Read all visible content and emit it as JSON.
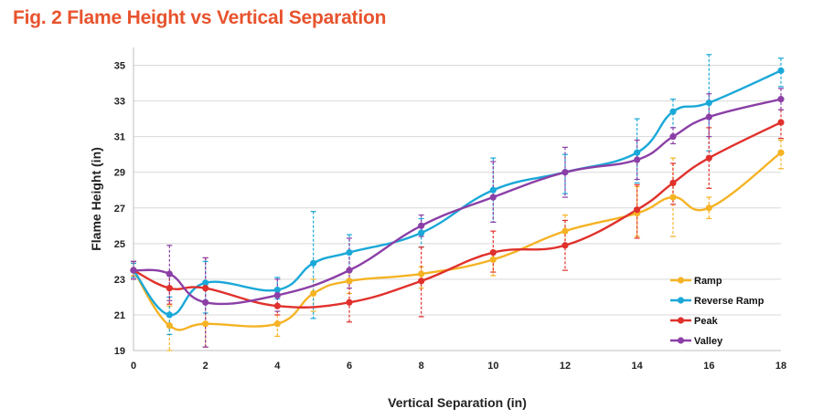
{
  "title": "Fig. 2 Flame Height vs Vertical Separation",
  "chart_data": {
    "type": "line",
    "title": "Fig. 2 Flame Height vs Vertical Separation",
    "xlabel": "Vertical Separation (in)",
    "ylabel": "Flame Height (in)",
    "xlim": [
      0,
      18
    ],
    "ylim": [
      19,
      36
    ],
    "xticks": [
      0,
      2,
      4,
      6,
      8,
      10,
      12,
      14,
      16,
      18
    ],
    "yticks": [
      19,
      21,
      23,
      25,
      27,
      29,
      31,
      33,
      35
    ],
    "x": [
      0,
      1,
      2,
      4,
      5,
      6,
      8,
      10,
      12,
      14,
      15,
      16,
      18
    ],
    "grid": "horizontal",
    "legend_position": "bottom-right",
    "series": [
      {
        "name": "Ramp",
        "color": "#f5b324",
        "values": [
          23.5,
          20.4,
          20.5,
          20.5,
          22.2,
          22.9,
          23.3,
          24.1,
          25.7,
          26.7,
          27.6,
          27.0,
          30.1
        ],
        "err_low": [
          23.2,
          19.0,
          19.2,
          19.8,
          21.2,
          22.2,
          22.5,
          23.2,
          24.8,
          25.4,
          25.4,
          26.4,
          29.2
        ],
        "err_high": [
          23.9,
          21.5,
          21.7,
          21.0,
          23.0,
          23.6,
          23.7,
          24.6,
          26.6,
          28.2,
          29.8,
          27.6,
          30.8
        ]
      },
      {
        "name": "Reverse Ramp",
        "color": "#1aa8d8",
        "values": [
          23.5,
          21.0,
          22.8,
          22.4,
          23.9,
          24.5,
          25.6,
          28.0,
          29.0,
          30.1,
          32.4,
          32.9,
          34.7
        ],
        "err_low": [
          23.1,
          19.9,
          21.1,
          21.9,
          20.8,
          23.5,
          24.8,
          26.2,
          27.8,
          28.4,
          31.5,
          30.2,
          33.8
        ],
        "err_high": [
          23.9,
          22.0,
          24.0,
          23.1,
          26.8,
          25.5,
          26.4,
          29.8,
          30.0,
          32.0,
          33.1,
          35.6,
          35.4
        ]
      },
      {
        "name": "Peak",
        "color": "#e0312c",
        "values": [
          23.5,
          22.5,
          22.5,
          21.5,
          null,
          21.7,
          22.9,
          24.5,
          24.9,
          26.9,
          28.4,
          29.8,
          31.8
        ],
        "err_low": [
          23.0,
          21.6,
          19.2,
          21.0,
          null,
          20.6,
          20.9,
          23.4,
          23.5,
          25.3,
          27.2,
          28.1,
          30.9
        ],
        "err_high": [
          24.0,
          23.3,
          24.2,
          22.0,
          null,
          22.8,
          24.8,
          25.7,
          26.3,
          28.3,
          29.5,
          31.5,
          32.5
        ]
      },
      {
        "name": "Valley",
        "color": "#8b3fa6",
        "values": [
          23.5,
          23.3,
          21.7,
          22.1,
          null,
          23.5,
          26.0,
          27.6,
          29.0,
          29.7,
          31.0,
          32.1,
          33.1
        ],
        "err_low": [
          23.0,
          21.8,
          19.2,
          21.2,
          null,
          22.5,
          25.4,
          26.2,
          27.6,
          28.6,
          30.6,
          31.0,
          32.5
        ],
        "err_high": [
          24.0,
          24.9,
          24.2,
          23.0,
          null,
          25.3,
          26.6,
          29.6,
          30.4,
          30.8,
          31.5,
          33.4,
          33.7
        ]
      }
    ]
  }
}
